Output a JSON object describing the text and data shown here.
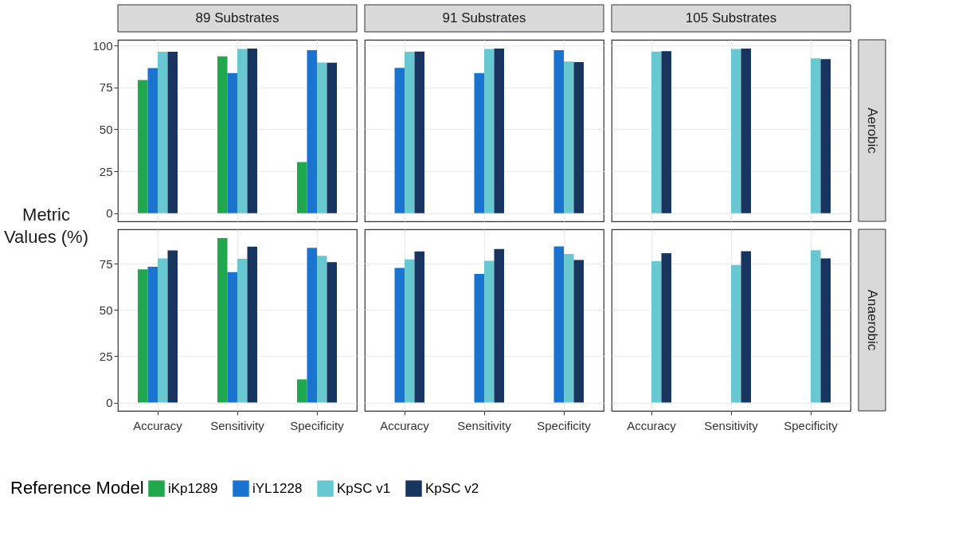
{
  "chart_data": [
    {
      "type": "bar",
      "title": "89 Substrates",
      "ylabel": "Metric Values (%)",
      "legend": "bottom",
      "legend_title": "Reference Model",
      "categories": [
        "Accuracy",
        "Sensitivity",
        "Specificity"
      ],
      "series": [
        {
          "name": "iKp1289",
          "color": "#21a84e",
          "values": [
            79.4,
            93.5,
            30.5
          ]
        },
        {
          "name": "iYL1228",
          "color": "#1a73cf",
          "values": [
            86.5,
            83.6,
            97.2
          ]
        },
        {
          "name": "KpSC v1",
          "color": "#67c8d1",
          "values": [
            96.3,
            97.9,
            89.9
          ]
        },
        {
          "name": "KpSC v2",
          "color": "#17355e",
          "values": [
            96.3,
            98.2,
            89.8
          ]
        }
      ],
      "ylim": [
        -4.9,
        103.4
      ],
      "yticks": [
        0,
        25,
        50,
        75,
        100
      ],
      "grid": true,
      "tick_labels": "y"
    },
    {
      "type": "bar",
      "title": "91 Substrates",
      "categories": [
        "Accuracy",
        "Sensitivity",
        "Specificity"
      ],
      "series": [
        {
          "name": "iKp1289",
          "color": "#21a84e",
          "values": [
            null,
            null,
            null
          ]
        },
        {
          "name": "iYL1228",
          "color": "#1a73cf",
          "values": [
            86.7,
            83.6,
            97.2
          ]
        },
        {
          "name": "KpSC v1",
          "color": "#67c8d1",
          "values": [
            96.3,
            97.9,
            90.5
          ]
        },
        {
          "name": "KpSC v2",
          "color": "#17355e",
          "values": [
            96.4,
            98.2,
            90.1
          ]
        }
      ],
      "ylim": [
        -4.9,
        103.4
      ],
      "yticks": [
        0,
        25,
        50,
        75,
        100
      ],
      "grid": true,
      "tick_labels": false
    },
    {
      "type": "bar",
      "title": "105 Substrates",
      "y2label": "Aerobic",
      "categories": [
        "Accuracy",
        "Sensitivity",
        "Specificity"
      ],
      "series": [
        {
          "name": "iKp1289",
          "color": "#21a84e",
          "values": [
            null,
            null,
            null
          ]
        },
        {
          "name": "iYL1228",
          "color": "#1a73cf",
          "values": [
            null,
            null,
            null
          ]
        },
        {
          "name": "KpSC v1",
          "color": "#67c8d1",
          "values": [
            96.4,
            97.9,
            92.3
          ]
        },
        {
          "name": "KpSC v2",
          "color": "#17355e",
          "values": [
            96.6,
            98.2,
            91.9
          ]
        }
      ],
      "ylim": [
        -4.9,
        103.4
      ],
      "yticks": [
        0,
        25,
        50,
        75,
        100
      ],
      "grid": true,
      "tick_labels": false
    },
    {
      "type": "bar",
      "categories": [
        "Accuracy",
        "Sensitivity",
        "Specificity"
      ],
      "series": [
        {
          "name": "iKp1289",
          "color": "#21a84e",
          "values": [
            71.9,
            88.8,
            12.5
          ]
        },
        {
          "name": "iYL1228",
          "color": "#1a73cf",
          "values": [
            73.3,
            70.4,
            83.5
          ]
        },
        {
          "name": "KpSC v1",
          "color": "#67c8d1",
          "values": [
            77.8,
            77.6,
            79.2
          ]
        },
        {
          "name": "KpSC v2",
          "color": "#17355e",
          "values": [
            82.1,
            84.1,
            75.8
          ]
        }
      ],
      "ylim": [
        -4.5,
        93.5
      ],
      "yticks": [
        0,
        25,
        50,
        75
      ],
      "grid": true
    },
    {
      "type": "bar",
      "categories": [
        "Accuracy",
        "Sensitivity",
        "Specificity"
      ],
      "series": [
        {
          "name": "iKp1289",
          "color": "#21a84e",
          "values": [
            null,
            null,
            null
          ]
        },
        {
          "name": "iYL1228",
          "color": "#1a73cf",
          "values": [
            72.7,
            69.4,
            84.3
          ]
        },
        {
          "name": "KpSC v1",
          "color": "#67c8d1",
          "values": [
            77.3,
            76.5,
            80.2
          ]
        },
        {
          "name": "KpSC v2",
          "color": "#17355e",
          "values": [
            81.6,
            82.9,
            76.9
          ]
        }
      ],
      "ylim": [
        -4.5,
        93.5
      ],
      "yticks": [
        0,
        25,
        50,
        75
      ],
      "grid": true,
      "tick_labels": "x"
    },
    {
      "type": "bar",
      "y2label": "Anaerobic",
      "categories": [
        "Accuracy",
        "Sensitivity",
        "Specificity"
      ],
      "series": [
        {
          "name": "iKp1289",
          "color": "#21a84e",
          "values": [
            null,
            null,
            null
          ]
        },
        {
          "name": "iYL1228",
          "color": "#1a73cf",
          "values": [
            null,
            null,
            null
          ]
        },
        {
          "name": "KpSC v1",
          "color": "#67c8d1",
          "values": [
            76.3,
            74.3,
            82.2
          ]
        },
        {
          "name": "KpSC v2",
          "color": "#17355e",
          "values": [
            80.6,
            81.7,
            77.8
          ]
        }
      ],
      "ylim": [
        -4.5,
        93.5
      ],
      "yticks": [
        0,
        25,
        50,
        75
      ],
      "grid": true,
      "tick_labels": "x"
    }
  ]
}
